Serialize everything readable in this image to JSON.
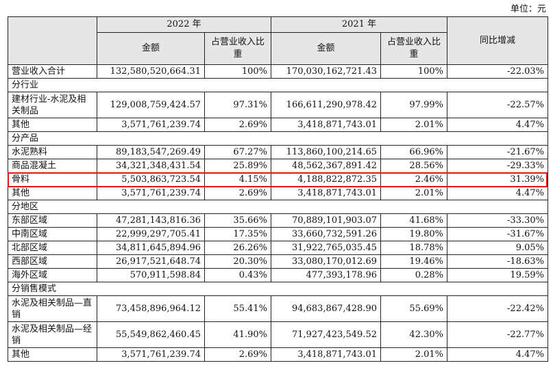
{
  "unit_label": "单位：元",
  "header": {
    "year_2022": "2022 年",
    "year_2021": "2021 年",
    "amount": "金额",
    "share": "占营业收入比重",
    "yoy": "同比增减"
  },
  "highlight_color": "#e0161b",
  "rows": [
    {
      "label": "营业收入合计",
      "a22": "132,580,520,664.31",
      "s22": "100%",
      "a21": "170,030,162,721.43",
      "s21": "100%",
      "yoy": "-22.03%"
    },
    {
      "section": "分行业"
    },
    {
      "label": "建材行业-水泥及相关制品",
      "a22": "129,008,759,424.57",
      "s22": "97.31%",
      "a21": "166,611,290,978.42",
      "s21": "97.99%",
      "yoy": "-22.57%"
    },
    {
      "label": "其他",
      "a22": "3,571,761,239.74",
      "s22": "2.69%",
      "a21": "3,418,871,743.01",
      "s21": "2.01%",
      "yoy": "4.47%"
    },
    {
      "section": "分产品"
    },
    {
      "label": "水泥熟料",
      "a22": "89,183,547,269.49",
      "s22": "67.27%",
      "a21": "113,860,100,214.65",
      "s21": "66.96%",
      "yoy": "-21.67%"
    },
    {
      "label": "商品混凝土",
      "a22": "34,321,348,431.54",
      "s22": "25.89%",
      "a21": "48,562,367,891.42",
      "s21": "28.56%",
      "yoy": "-29.33%"
    },
    {
      "label": "骨料",
      "a22": "5,503,863,723.54",
      "s22": "4.15%",
      "a21": "4,188,822,872.35",
      "s21": "2.46%",
      "yoy": "31.39%"
    },
    {
      "label": "其他",
      "a22": "3,571,761,239.74",
      "s22": "2.69%",
      "a21": "3,418,871,743.01",
      "s21": "2.01%",
      "yoy": "4.47%"
    },
    {
      "section": "分地区"
    },
    {
      "label": "东部区域",
      "a22": "47,281,143,816.36",
      "s22": "35.66%",
      "a21": "70,889,101,903.07",
      "s21": "41.68%",
      "yoy": "-33.30%"
    },
    {
      "label": "中南区域",
      "a22": "22,999,297,705.41",
      "s22": "17.35%",
      "a21": "33,660,732,591.26",
      "s21": "19.80%",
      "yoy": "-31.67%"
    },
    {
      "label": "北部区域",
      "a22": "34,811,645,894.96",
      "s22": "26.26%",
      "a21": "31,922,765,035.45",
      "s21": "18.78%",
      "yoy": "9.05%"
    },
    {
      "label": "西部区域",
      "a22": "26,917,521,648.74",
      "s22": "20.30%",
      "a21": "33,080,170,012.69",
      "s21": "19.46%",
      "yoy": "-18.63%"
    },
    {
      "label": "海外区域",
      "a22": "570,911,598.84",
      "s22": "0.43%",
      "a21": "477,393,178.96",
      "s21": "0.28%",
      "yoy": "19.59%"
    },
    {
      "section": "分销售模式"
    },
    {
      "label": "水泥及相关制品—直销",
      "a22": "73,458,896,964.12",
      "s22": "55.41%",
      "a21": "94,683,867,428.90",
      "s21": "55.69%",
      "yoy": "-22.42%"
    },
    {
      "label": "水泥及相关制品—经销",
      "a22": "55,549,862,460.45",
      "s22": "41.90%",
      "a21": "71,927,423,549.52",
      "s21": "42.30%",
      "yoy": "-22.77%"
    },
    {
      "label": "其他",
      "a22": "3,571,761,239.74",
      "s22": "2.69%",
      "a21": "3,418,871,743.01",
      "s21": "2.01%",
      "yoy": "4.47%"
    }
  ]
}
